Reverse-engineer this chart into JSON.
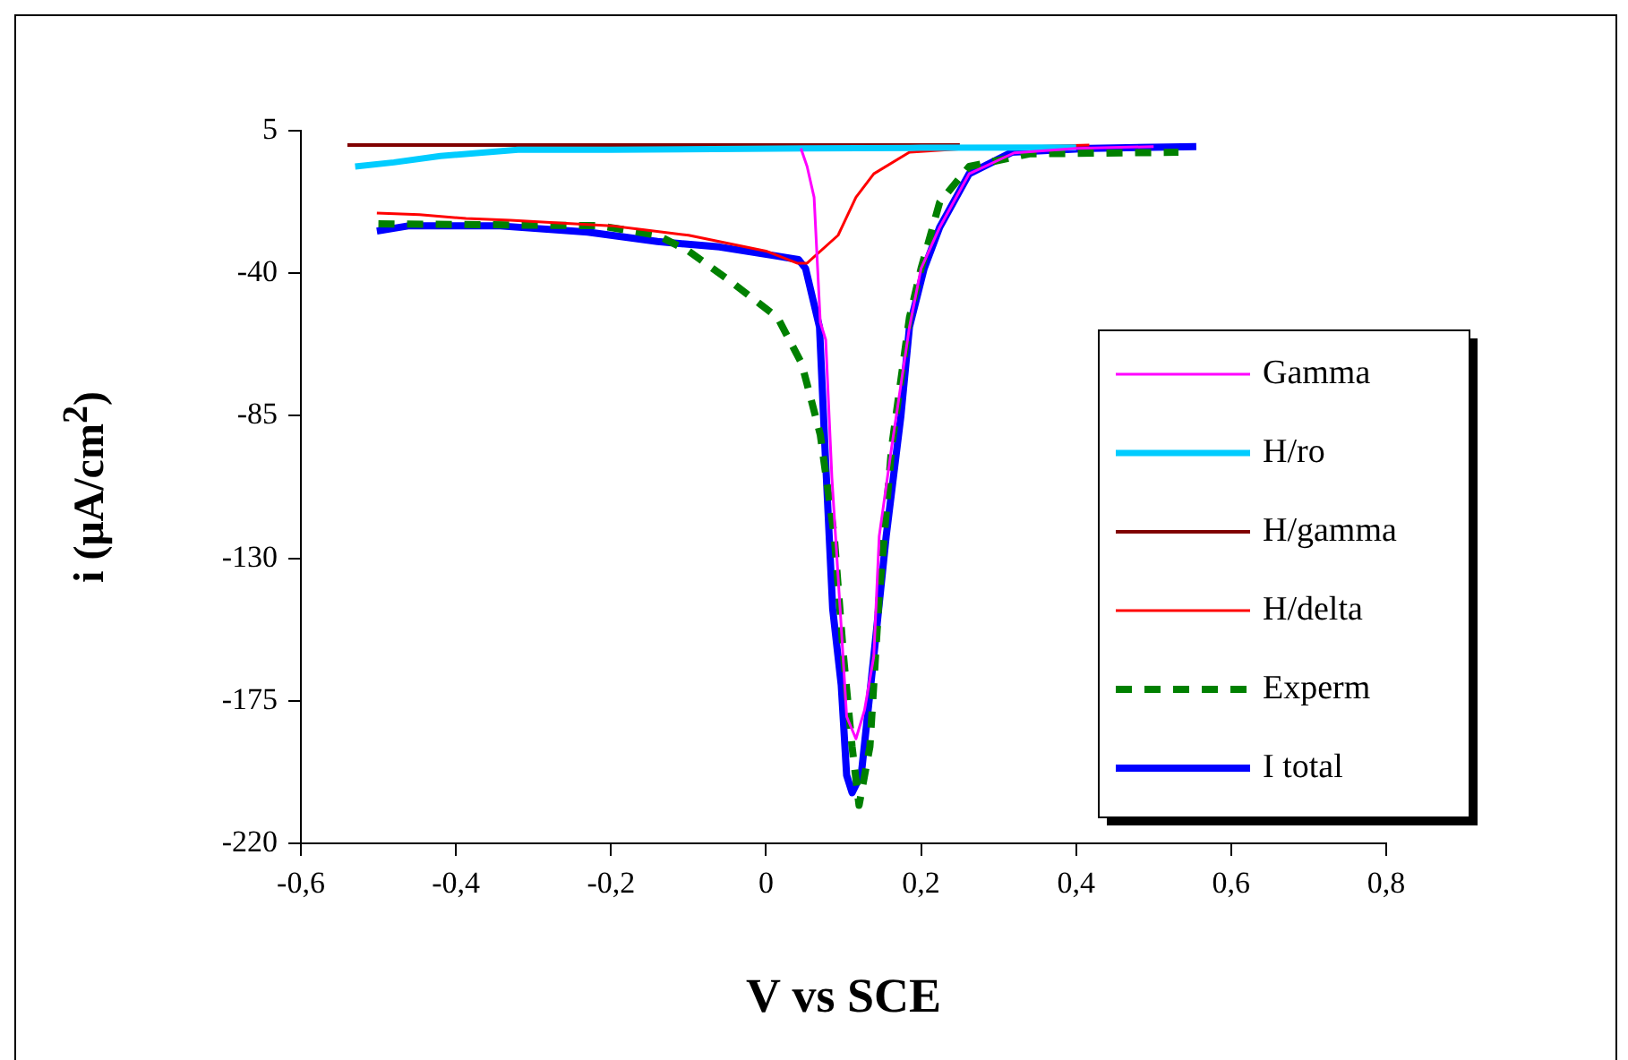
{
  "chart_data": {
    "type": "line",
    "xlabel": "V vs SCE",
    "ylabel": "i (μA/cm$^{2}$)",
    "xlim": [
      -0.6,
      0.8
    ],
    "ylim": [
      -220,
      5
    ],
    "xticks": [
      {
        "value": -0.6,
        "label": "-0,6"
      },
      {
        "value": -0.4,
        "label": "-0,4"
      },
      {
        "value": -0.2,
        "label": "-0,2"
      },
      0,
      {
        "value": 0.2,
        "label": "0,2"
      },
      {
        "value": 0.4,
        "label": "0,4"
      },
      {
        "value": 0.6,
        "label": "0,6"
      },
      {
        "value": 0.8,
        "label": "0,8"
      }
    ],
    "yticks": [
      5,
      -40,
      -85,
      -130,
      -175,
      -220
    ],
    "grid": false,
    "legend": "right",
    "marker": "none",
    "series": [
      {
        "name": "Gamma",
        "color": "#ff00ff",
        "x": [
          0.045,
          0.053,
          0.062,
          0.07,
          0.077,
          0.085,
          0.097,
          0.104,
          0.116,
          0.127,
          0.139,
          0.146,
          0.162,
          0.185,
          0.2,
          0.224,
          0.262,
          0.32,
          0.4,
          0.5
        ],
        "values": [
          -0.6,
          -6.3,
          -16,
          -55.5,
          -61,
          -104.7,
          -151.6,
          -180,
          -187,
          -178,
          -161,
          -123,
          -95,
          -57,
          -38.5,
          -25.5,
          -8.6,
          -2,
          -0.6,
          0
        ]
      },
      {
        "name": "H/ro",
        "color": "#00ccff",
        "x": [
          -0.53,
          -0.48,
          -0.42,
          -0.32,
          -0.2,
          0.05,
          0.2,
          0.4
        ],
        "values": [
          -6.3,
          -5,
          -3,
          -1,
          -1,
          -0.6,
          -0.4,
          -0.3
        ]
      },
      {
        "name": "H/gamma",
        "color": "#800000",
        "x": [
          -0.54,
          -0.3,
          0,
          0.25
        ],
        "values": [
          0.5,
          0.5,
          0.5,
          0.5
        ]
      },
      {
        "name": "H/delta",
        "color": "#ff0000",
        "x": [
          -0.502,
          -0.447,
          -0.387,
          -0.33,
          -0.2,
          -0.1,
          0,
          0.04,
          0.053,
          0.093,
          0.116,
          0.139,
          0.185,
          0.262,
          0.417
        ],
        "values": [
          -21,
          -21.5,
          -22.7,
          -23.3,
          -25,
          -28,
          -33,
          -36.8,
          -36.8,
          -28,
          -16,
          -8.6,
          -1.8,
          -0.6,
          0.5
        ]
      },
      {
        "name": "Experm",
        "color": "#008000",
        "line_style": "dashed",
        "x": [
          -0.5,
          -0.215,
          -0.14,
          -0.1,
          -0.046,
          0.015,
          0.046,
          0.07,
          0.088,
          0.1,
          0.111,
          0.12,
          0.134,
          0.146,
          0.162,
          0.185,
          0.2,
          0.224,
          0.262,
          0.34,
          0.532
        ],
        "values": [
          -24.4,
          -25,
          -28,
          -33,
          -42.5,
          -54,
          -68.5,
          -91,
          -123,
          -161,
          -189.5,
          -208,
          -189.5,
          -142,
          -95,
          -54,
          -38.5,
          -17.6,
          -6.3,
          -2.3,
          -1.8
        ]
      },
      {
        "name": "I total",
        "color": "#0000ff",
        "x": [
          -0.502,
          -0.46,
          -0.347,
          -0.23,
          -0.14,
          -0.06,
          0.015,
          0.042,
          0.051,
          0.069,
          0.076,
          0.086,
          0.097,
          0.104,
          0.111,
          0.123,
          0.139,
          0.155,
          0.174,
          0.185,
          0.204,
          0.224,
          0.262,
          0.317,
          0.417,
          0.555
        ],
        "values": [
          -26.7,
          -25,
          -25,
          -27,
          -30,
          -31.7,
          -34.6,
          -35.7,
          -38.5,
          -57,
          -95,
          -146,
          -170,
          -198.5,
          -204,
          -198,
          -161,
          -123,
          -85,
          -57,
          -38.5,
          -25.5,
          -8.6,
          -1.8,
          -0.6,
          0
        ]
      }
    ]
  }
}
